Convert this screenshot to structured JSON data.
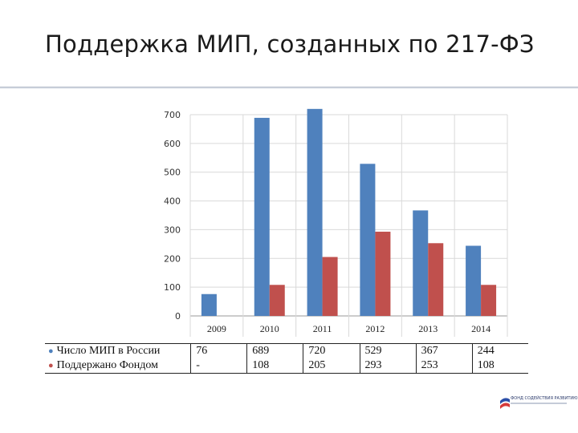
{
  "slide": {
    "title": "Поддержка МИП, созданных по 217-ФЗ"
  },
  "chart_data": {
    "type": "bar",
    "categories": [
      "2009",
      "2010",
      "2011",
      "2012",
      "2013",
      "2014"
    ],
    "series": [
      {
        "name": "Число МИП в России",
        "color": "#4f81bd",
        "values": [
          76,
          689,
          720,
          529,
          367,
          244
        ]
      },
      {
        "name": "Поддержано Фондом",
        "color": "#c0504d",
        "values": [
          null,
          108,
          205,
          293,
          253,
          108
        ]
      }
    ],
    "ylim": [
      0,
      700
    ],
    "yticks": [
      "0",
      "100",
      "200",
      "300",
      "400",
      "500",
      "600",
      "700"
    ],
    "grid": true,
    "legend": "data table below chart"
  },
  "table": {
    "rows": [
      {
        "label": "Число МИП в России",
        "marker": "●",
        "color": "#4f81bd",
        "cells": [
          "76",
          "689",
          "720",
          "529",
          "367",
          "244"
        ]
      },
      {
        "label": "Поддержано Фондом",
        "marker": "●",
        "color": "#c0504d",
        "cells": [
          "-",
          "108",
          "205",
          "293",
          "253",
          "108"
        ]
      }
    ]
  },
  "logo": {
    "text": "ФОНД СОДЕЙСТВИЯ РАЗВИТИЮ",
    "colors": [
      "#2b4ea8",
      "#d63a3a",
      "#ffffff"
    ]
  }
}
